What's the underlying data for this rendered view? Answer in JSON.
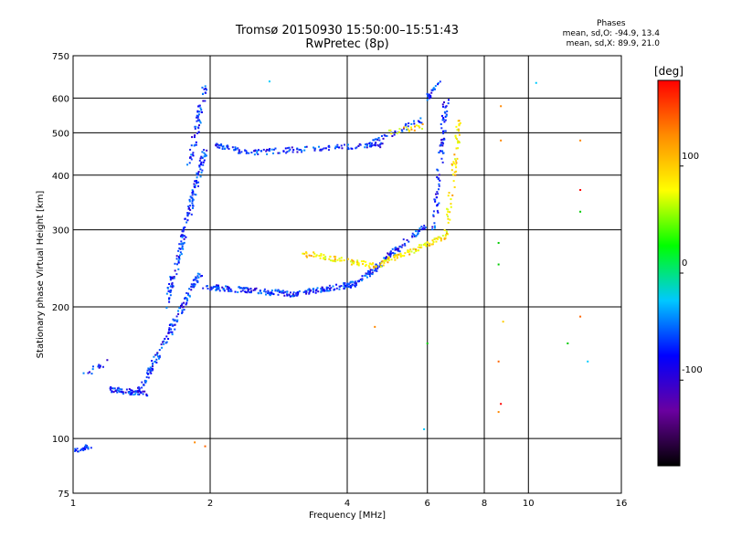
{
  "header": {
    "title_line1": "Tromsø 20150930 15:50:00–15:51:43",
    "title_line2": "RwPretec (8p)"
  },
  "phases": {
    "heading": "Phases",
    "line_o": "mean, sd,O: -94.9, 13.4",
    "line_x": "mean, sd,X: 89.9, 21.0"
  },
  "chart_data": {
    "type": "scatter",
    "xlabel": "Frequency [MHz]",
    "ylabel": "Stationary phase Virtual Height [km]",
    "xscale": "log",
    "yscale": "log",
    "xlim": [
      1,
      16
    ],
    "ylim": [
      75,
      750
    ],
    "xticks": [
      1,
      2,
      4,
      6,
      8,
      10,
      16
    ],
    "yticks": [
      75,
      100,
      200,
      300,
      400,
      500,
      600,
      750
    ],
    "xgrid": [
      2,
      4,
      6,
      8,
      10
    ],
    "ygrid": [
      100,
      200,
      300,
      400,
      500,
      600
    ],
    "colorbar": {
      "label": "[deg]",
      "range": [
        -180,
        180
      ],
      "ticks": [
        100,
        0,
        -100
      ],
      "colors": [
        "#000000",
        "#6a00a0",
        "#0000ff",
        "#00c8ff",
        "#00ff00",
        "#ffff00",
        "#ff8c00",
        "#ff0000"
      ]
    },
    "series": [
      {
        "color_group": "blue",
        "segments": [
          {
            "x": [
              1.0,
              1.1
            ],
            "y": [
              94,
              96
            ],
            "n": 20
          },
          {
            "x": [
              1.05,
              1.2
            ],
            "y": [
              140,
              150
            ],
            "n": 14
          },
          {
            "x": [
              1.2,
              1.45
            ],
            "y": [
              130,
              126
            ],
            "n": 60
          },
          {
            "x": [
              1.4,
              1.9
            ],
            "y": [
              128,
              240
            ],
            "n": 140
          },
          {
            "x": [
              1.6,
              1.95
            ],
            "y": [
              200,
              460
            ],
            "n": 160
          },
          {
            "x": [
              1.8,
              1.95
            ],
            "y": [
              420,
              640
            ],
            "n": 60
          },
          {
            "x": [
              1.95,
              3.0
            ],
            "y": [
              222,
              214
            ],
            "n": 120
          },
          {
            "x": [
              3.0,
              4.2
            ],
            "y": [
              214,
              226
            ],
            "n": 110
          },
          {
            "x": [
              4.2,
              6.0
            ],
            "y": [
              226,
              310
            ],
            "n": 110
          },
          {
            "x": [
              2.05,
              2.4
            ],
            "y": [
              470,
              450
            ],
            "n": 40
          },
          {
            "x": [
              2.4,
              4.8
            ],
            "y": [
              450,
              470
            ],
            "n": 110
          },
          {
            "x": [
              4.5,
              5.9
            ],
            "y": [
              470,
              540
            ],
            "n": 40
          },
          {
            "x": [
              6.2,
              6.6
            ],
            "y": [
              300,
              600
            ],
            "n": 80
          },
          {
            "x": [
              6.0,
              6.4
            ],
            "y": [
              600,
              650
            ],
            "n": 20
          }
        ]
      },
      {
        "color_group": "yellow",
        "segments": [
          {
            "x": [
              3.2,
              4.6
            ],
            "y": [
              265,
              248
            ],
            "n": 70
          },
          {
            "x": [
              4.6,
              6.6
            ],
            "y": [
              248,
              290
            ],
            "n": 90
          },
          {
            "x": [
              6.6,
              7.1
            ],
            "y": [
              290,
              560
            ],
            "n": 60
          },
          {
            "x": [
              5.0,
              5.9
            ],
            "y": [
              500,
              520
            ],
            "n": 20
          }
        ]
      },
      {
        "color_group": "scattered",
        "points": [
          {
            "x": 2.7,
            "y": 655
          },
          {
            "x": 10.4,
            "y": 650
          },
          {
            "x": 8.7,
            "y": 575
          },
          {
            "x": 8.7,
            "y": 480
          },
          {
            "x": 13.0,
            "y": 480
          },
          {
            "x": 13.0,
            "y": 370
          },
          {
            "x": 13.0,
            "y": 330
          },
          {
            "x": 8.6,
            "y": 280
          },
          {
            "x": 8.6,
            "y": 250
          },
          {
            "x": 8.8,
            "y": 185
          },
          {
            "x": 13.0,
            "y": 190
          },
          {
            "x": 12.2,
            "y": 165
          },
          {
            "x": 13.5,
            "y": 150
          },
          {
            "x": 8.6,
            "y": 150
          },
          {
            "x": 8.7,
            "y": 120
          },
          {
            "x": 8.6,
            "y": 115
          },
          {
            "x": 5.9,
            "y": 105
          },
          {
            "x": 6.0,
            "y": 165
          },
          {
            "x": 4.6,
            "y": 180
          },
          {
            "x": 1.85,
            "y": 98
          },
          {
            "x": 1.95,
            "y": 96
          }
        ]
      }
    ]
  }
}
